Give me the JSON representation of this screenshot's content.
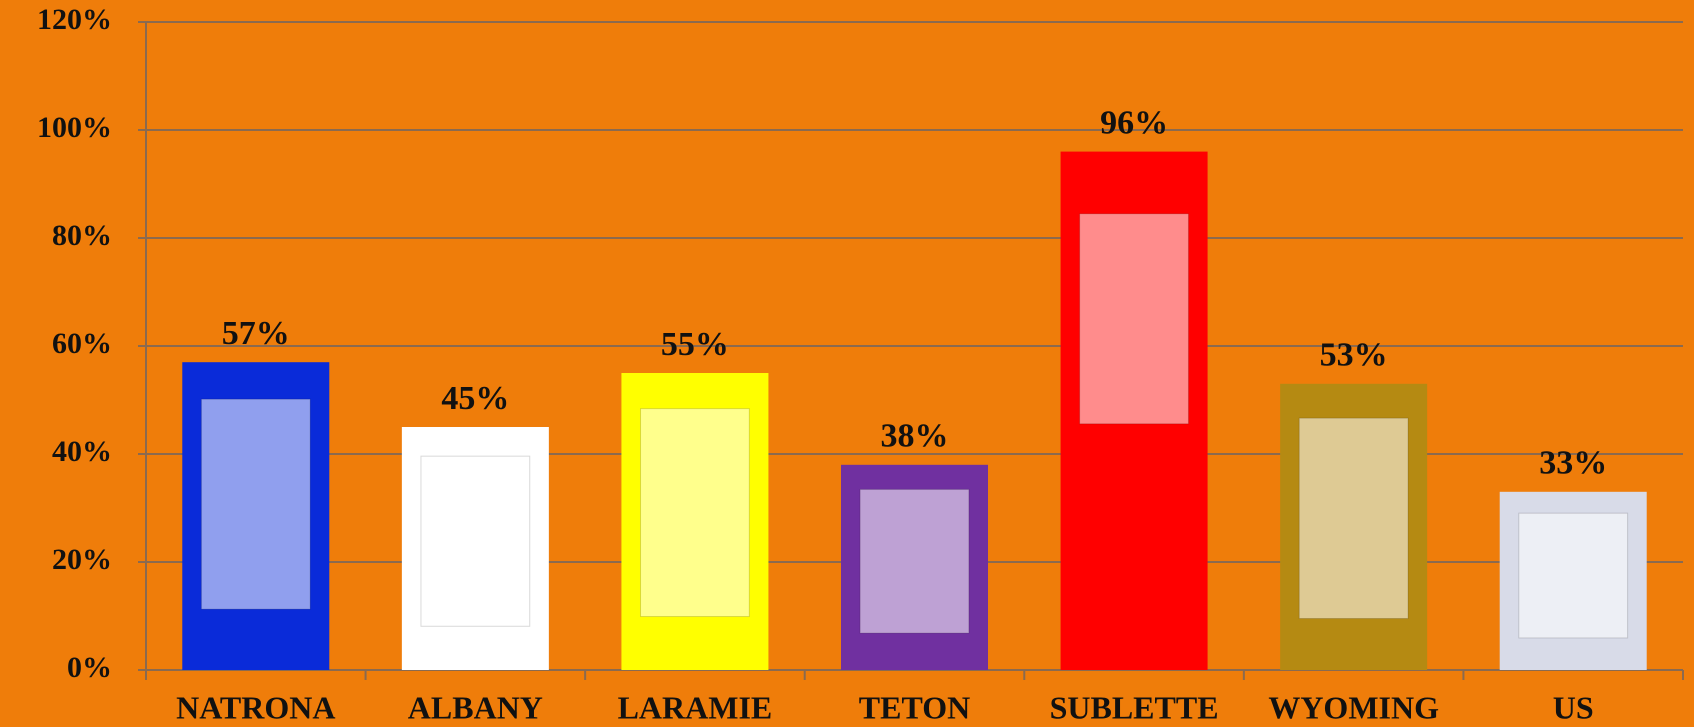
{
  "chart_data": {
    "type": "bar",
    "categories": [
      "NATRONA",
      "ALBANY",
      "LARAMIE",
      "TETON",
      "SUBLETTE",
      "WYOMING",
      "US"
    ],
    "values": [
      57,
      45,
      55,
      38,
      96,
      53,
      33
    ],
    "value_labels": [
      "57%",
      "45%",
      "55%",
      "38%",
      "96%",
      "53%",
      "33%"
    ],
    "colors": [
      "#0a2bd9",
      "#ffffff",
      "#ffff00",
      "#7030a0",
      "#ff0000",
      "#b58a12",
      "#d8dbe8"
    ],
    "ylim": [
      0,
      120
    ],
    "yticks": [
      {
        "value": 0,
        "label": "0%"
      },
      {
        "value": 20,
        "label": "20%"
      },
      {
        "value": 40,
        "label": "40%"
      },
      {
        "value": 60,
        "label": "60%"
      },
      {
        "value": 80,
        "label": "80%"
      },
      {
        "value": 100,
        "label": "100%"
      },
      {
        "value": 120,
        "label": "120%"
      }
    ],
    "grid": true
  }
}
